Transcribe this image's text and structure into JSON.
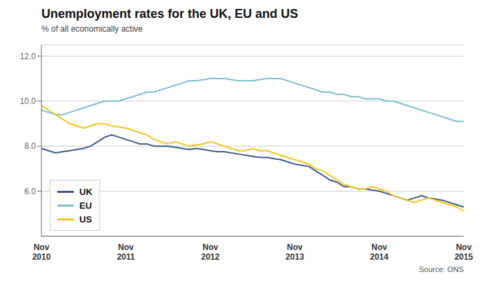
{
  "chart_data": {
    "type": "line",
    "title": "Unemployment rates for the UK, EU and US",
    "subtitle": "% of all economically active",
    "source": "Source: ONS",
    "categories": [
      "Nov\n2010",
      null,
      null,
      null,
      null,
      null,
      null,
      null,
      null,
      null,
      null,
      null,
      "Nov\n2011",
      null,
      null,
      null,
      null,
      null,
      null,
      null,
      null,
      null,
      null,
      null,
      "Nov\n2012",
      null,
      null,
      null,
      null,
      null,
      null,
      null,
      null,
      null,
      null,
      null,
      "Nov\n2013",
      null,
      null,
      null,
      null,
      null,
      null,
      null,
      null,
      null,
      null,
      null,
      "Nov\n2014",
      null,
      null,
      null,
      null,
      null,
      null,
      null,
      null,
      null,
      null,
      null,
      "Nov\n2015"
    ],
    "series": [
      {
        "name": "UK",
        "color": "#3d5a8a",
        "values": [
          7.9,
          7.8,
          7.7,
          7.75,
          7.8,
          7.85,
          7.9,
          8.0,
          8.2,
          8.4,
          8.5,
          8.4,
          8.3,
          8.2,
          8.1,
          8.1,
          8.0,
          8.0,
          8.0,
          7.95,
          7.9,
          7.85,
          7.9,
          7.85,
          7.8,
          7.75,
          7.75,
          7.7,
          7.65,
          7.6,
          7.55,
          7.5,
          7.5,
          7.45,
          7.4,
          7.3,
          7.2,
          7.15,
          7.1,
          6.9,
          6.7,
          6.5,
          6.4,
          6.2,
          6.2,
          6.1,
          6.1,
          6.05,
          6.0,
          5.9,
          5.8,
          5.7,
          5.6,
          5.7,
          5.8,
          5.7,
          5.65,
          5.6,
          5.5,
          5.4,
          5.3
        ]
      },
      {
        "name": "EU",
        "color": "#7bbdd0",
        "values": [
          9.6,
          9.5,
          9.4,
          9.4,
          9.5,
          9.6,
          9.7,
          9.8,
          9.9,
          10.0,
          10.0,
          10.0,
          10.1,
          10.2,
          10.3,
          10.4,
          10.4,
          10.5,
          10.6,
          10.7,
          10.8,
          10.9,
          10.9,
          10.95,
          11.0,
          11.0,
          11.0,
          10.95,
          10.9,
          10.9,
          10.9,
          10.95,
          11.0,
          11.0,
          11.0,
          10.9,
          10.8,
          10.7,
          10.6,
          10.5,
          10.4,
          10.4,
          10.3,
          10.3,
          10.2,
          10.2,
          10.1,
          10.1,
          10.1,
          10.0,
          10.0,
          9.9,
          9.8,
          9.7,
          9.6,
          9.5,
          9.4,
          9.3,
          9.2,
          9.1,
          9.1
        ]
      },
      {
        "name": "US",
        "color": "#f0c619",
        "values": [
          9.8,
          9.6,
          9.4,
          9.2,
          9.0,
          8.9,
          8.8,
          8.9,
          9.0,
          9.0,
          8.9,
          8.85,
          8.8,
          8.7,
          8.6,
          8.5,
          8.3,
          8.2,
          8.1,
          8.2,
          8.1,
          8.0,
          8.05,
          8.1,
          8.2,
          8.1,
          8.0,
          7.9,
          7.8,
          7.8,
          7.9,
          7.8,
          7.8,
          7.7,
          7.6,
          7.5,
          7.4,
          7.3,
          7.2,
          7.0,
          6.9,
          6.7,
          6.5,
          6.3,
          6.2,
          6.1,
          6.1,
          6.2,
          6.1,
          6.0,
          5.8,
          5.7,
          5.6,
          5.5,
          5.6,
          5.7,
          5.6,
          5.5,
          5.4,
          5.3,
          5.1
        ]
      }
    ],
    "ylim": [
      4.0,
      12.5
    ],
    "yticks": [
      {
        "value": 6.0,
        "label": "6.0"
      },
      {
        "value": 8.0,
        "label": "8.0"
      },
      {
        "value": 10.0,
        "label": "10.0"
      },
      {
        "value": 12.0,
        "label": "12.0"
      }
    ],
    "grid": true,
    "legend": "lower left"
  }
}
